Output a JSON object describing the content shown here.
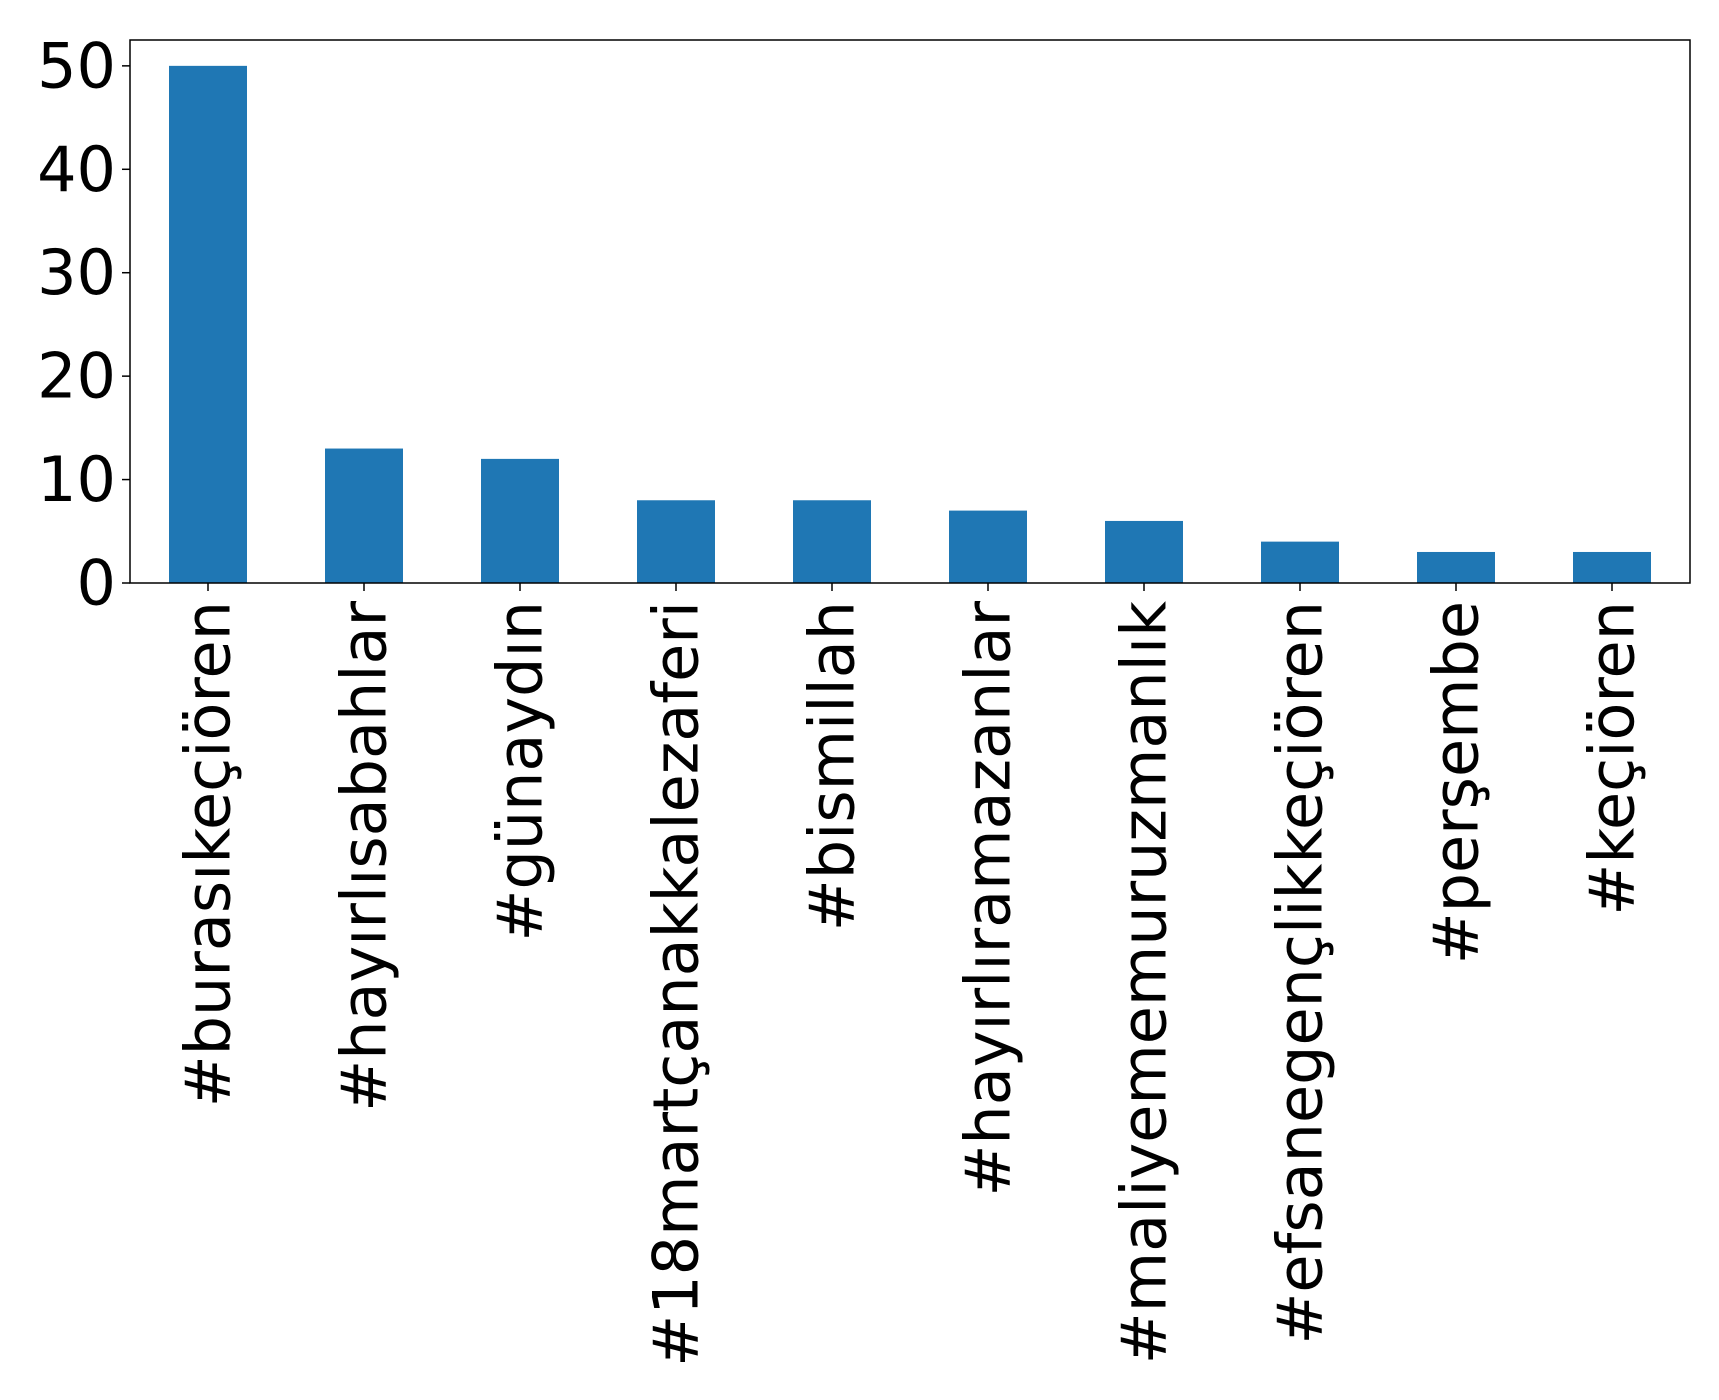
{
  "chart_data": {
    "type": "bar",
    "categories": [
      "#burasıkeçiören",
      "#hayırlısabahlar",
      "#günaydın",
      "#18martçanakkalezaferi",
      "#bismillah",
      "#hayırlıramazanlar",
      "#maliyememuruzmanlık",
      "#efsanegençlikkeçiören",
      "#perşembe",
      "#keçiören"
    ],
    "values": [
      50,
      13,
      12,
      8,
      8,
      7,
      6,
      4,
      3,
      3
    ],
    "ylim": [
      0,
      52.5
    ],
    "yticks": [
      0,
      10,
      20,
      30,
      40,
      50
    ],
    "title": "",
    "xlabel": "",
    "ylabel": "",
    "grid": false,
    "legend": "none",
    "colors": {
      "bar": "#1f77b4",
      "axis": "#000000"
    }
  }
}
